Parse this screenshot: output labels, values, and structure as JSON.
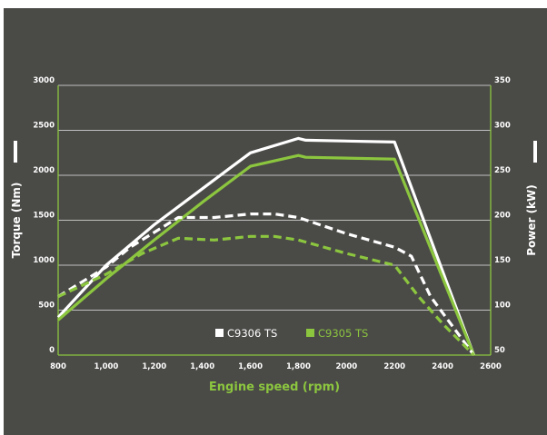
{
  "colors": {
    "background": "#4a4a47",
    "accent": "#8cc63f",
    "white": "#ffffff"
  },
  "chart_data": {
    "type": "line",
    "xlabel": "Engine speed  (rpm)",
    "ylabel_left": "Torque (Nm)",
    "ylabel_right": "Power (kW)",
    "xlim": [
      800,
      2600
    ],
    "ylim_left": [
      0,
      3000
    ],
    "ylim_right": [
      50,
      350
    ],
    "x_ticks": [
      "800",
      "1,000",
      "1,200",
      "1,400",
      "1,600",
      "1,800",
      "2000",
      "2200",
      "2400",
      "2600"
    ],
    "y_left_ticks": [
      "0",
      "500",
      "1000",
      "1500",
      "2000",
      "2500",
      "3000"
    ],
    "y_right_ticks": [
      "50",
      "100",
      "150",
      "200",
      "250",
      "300",
      "350"
    ],
    "grid": true,
    "legend": {
      "position": "bottom-center",
      "entries": [
        {
          "label": "C9306 TS",
          "color": "#ffffff"
        },
        {
          "label": "C9305 TS",
          "color": "#8cc63f"
        }
      ]
    },
    "series": [
      {
        "model": "C9306 TS",
        "quantity": "torque",
        "axis": "left",
        "style": "solid",
        "color": "#ffffff",
        "x": [
          800,
          1000,
          1200,
          1400,
          1600,
          1800,
          1830,
          2200,
          2530
        ],
        "y": [
          420,
          1000,
          1450,
          1850,
          2250,
          2410,
          2390,
          2370,
          0
        ]
      },
      {
        "model": "C9305 TS",
        "quantity": "torque",
        "axis": "left",
        "style": "solid",
        "color": "#8cc63f",
        "x": [
          800,
          1000,
          1200,
          1400,
          1600,
          1800,
          1830,
          2200,
          2530
        ],
        "y": [
          390,
          850,
          1280,
          1700,
          2100,
          2220,
          2200,
          2180,
          0
        ]
      },
      {
        "model": "C9306 TS",
        "quantity": "power",
        "axis": "right",
        "style": "dashed",
        "color": "#ffffff",
        "x": [
          800,
          1000,
          1100,
          1300,
          1450,
          1600,
          1700,
          1800,
          2000,
          2200,
          2270,
          2350,
          2530
        ],
        "y": [
          115,
          148,
          170,
          203,
          203,
          207,
          207,
          203,
          185,
          170,
          160,
          115,
          50
        ]
      },
      {
        "model": "C9305 TS",
        "quantity": "power",
        "axis": "right",
        "style": "dashed",
        "color": "#8cc63f",
        "x": [
          800,
          1000,
          1150,
          1300,
          1450,
          1600,
          1700,
          1800,
          2000,
          2200,
          2300,
          2400,
          2530
        ],
        "y": [
          115,
          140,
          163,
          180,
          178,
          182,
          182,
          178,
          163,
          150,
          115,
          85,
          50
        ]
      }
    ]
  }
}
